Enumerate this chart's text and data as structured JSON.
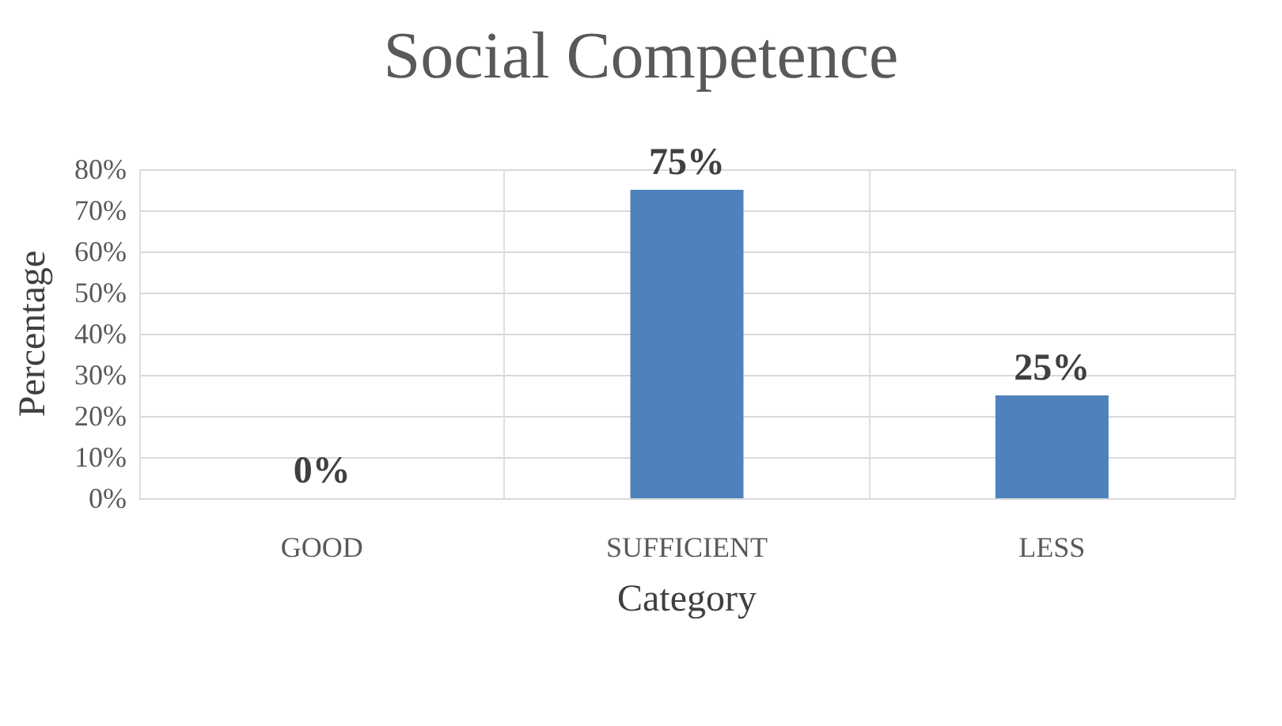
{
  "chart_data": {
    "type": "bar",
    "title": "Social Competence",
    "xlabel": "Category",
    "ylabel": "Percentage",
    "categories": [
      "GOOD",
      "SUFFICIENT",
      "LESS"
    ],
    "values": [
      0,
      75,
      25
    ],
    "color": "#4f81bd",
    "value_labels": [
      "0%",
      "75%",
      "25%"
    ],
    "ylim": [
      0,
      80
    ],
    "yticks": [
      {
        "value": 0,
        "label": "0%"
      },
      {
        "value": 10,
        "label": "10%"
      },
      {
        "value": 20,
        "label": "20%"
      },
      {
        "value": 30,
        "label": "30%"
      },
      {
        "value": 40,
        "label": "40%"
      },
      {
        "value": 50,
        "label": "50%"
      },
      {
        "value": 60,
        "label": "60%"
      },
      {
        "value": 70,
        "label": "70%"
      },
      {
        "value": 80,
        "label": "80%"
      }
    ],
    "grid": true
  }
}
